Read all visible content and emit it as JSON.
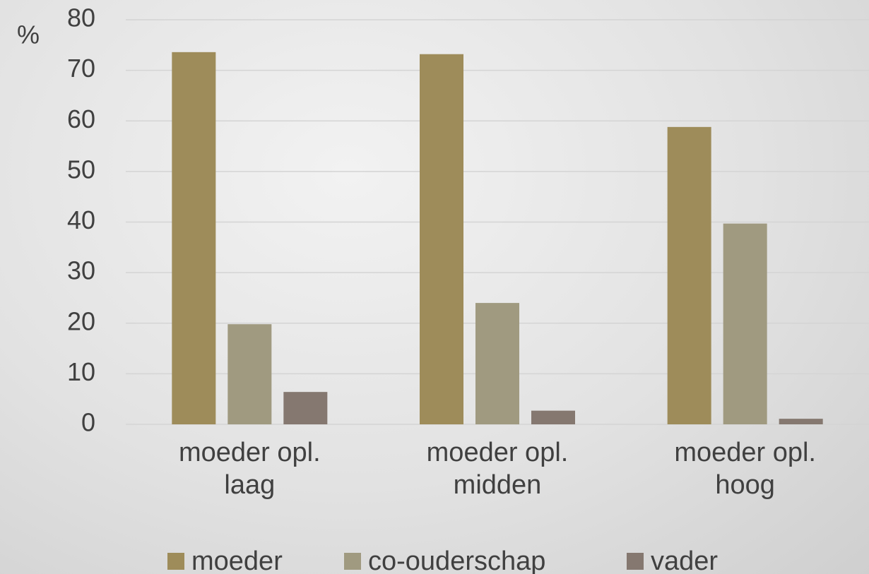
{
  "chart_data": {
    "type": "bar",
    "y_label": "%",
    "categories": [
      "moeder opl. laag",
      "moeder opl. midden",
      "moeder opl. hoog"
    ],
    "series": [
      {
        "name": "moeder",
        "color": "#9e8c5a",
        "values": [
          73.6,
          73.2,
          58.8
        ]
      },
      {
        "name": "co-ouderschap",
        "color": "#a09a80",
        "values": [
          19.8,
          24.0,
          39.7
        ]
      },
      {
        "name": "vader",
        "color": "#857870",
        "values": [
          6.4,
          2.7,
          1.1
        ]
      }
    ],
    "ylim": [
      0,
      80
    ],
    "yticks": [
      0,
      10,
      20,
      30,
      40,
      50,
      60,
      70,
      80
    ],
    "grid": true,
    "legend": "bottom"
  }
}
